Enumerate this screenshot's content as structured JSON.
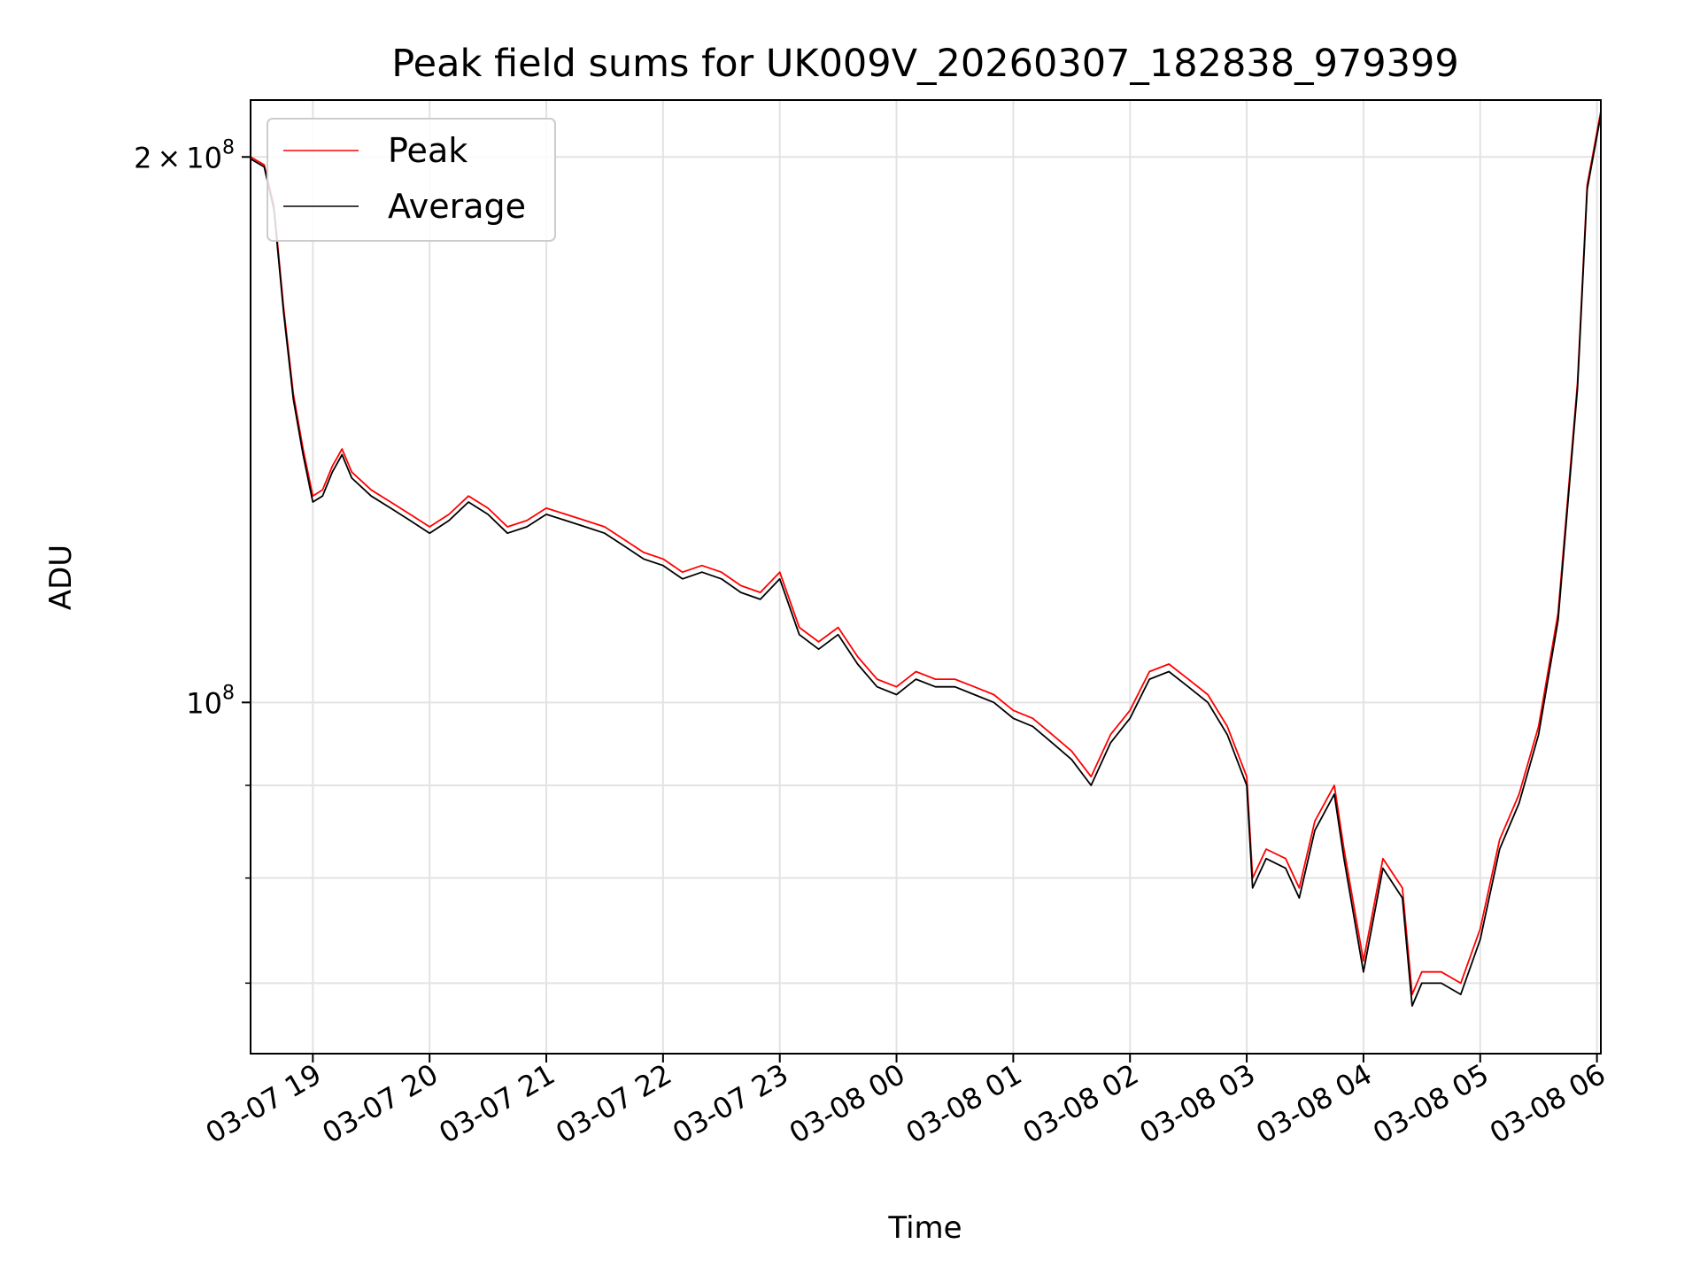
{
  "chart_data": {
    "type": "line",
    "title": "Peak field sums for UK009V_20260307_182838_979399",
    "xlabel": "Time",
    "ylabel": "ADU",
    "y_scale": "log",
    "grid": true,
    "legend_position": "top-left",
    "x_tick_labels": [
      "03-07 19",
      "03-07 20",
      "03-07 21",
      "03-07 22",
      "03-07 23",
      "03-08 00",
      "03-08 01",
      "03-08 02",
      "03-08 03",
      "03-08 04",
      "03-08 05",
      "03-08 06"
    ],
    "y_tick_labels": [
      {
        "value": 200000000,
        "mantissa": "2",
        "times": "×",
        "base": "10",
        "exponent": "8"
      },
      {
        "value": 100000000,
        "mantissa": "",
        "times": "",
        "base": "10",
        "exponent": "8"
      }
    ],
    "x_range": [
      "2026-03-07 18:28",
      "2026-03-08 06:02"
    ],
    "y_range": [
      64000000,
      215000000
    ],
    "x": [
      "2026-03-07 18:28",
      "2026-03-07 18:35",
      "2026-03-07 18:40",
      "2026-03-07 18:45",
      "2026-03-07 18:50",
      "2026-03-07 18:55",
      "2026-03-07 19:00",
      "2026-03-07 19:05",
      "2026-03-07 19:10",
      "2026-03-07 19:15",
      "2026-03-07 19:20",
      "2026-03-07 19:30",
      "2026-03-07 19:40",
      "2026-03-07 19:50",
      "2026-03-07 20:00",
      "2026-03-07 20:10",
      "2026-03-07 20:20",
      "2026-03-07 20:30",
      "2026-03-07 20:40",
      "2026-03-07 20:50",
      "2026-03-07 21:00",
      "2026-03-07 21:10",
      "2026-03-07 21:20",
      "2026-03-07 21:30",
      "2026-03-07 21:40",
      "2026-03-07 21:50",
      "2026-03-07 22:00",
      "2026-03-07 22:10",
      "2026-03-07 22:20",
      "2026-03-07 22:30",
      "2026-03-07 22:40",
      "2026-03-07 22:50",
      "2026-03-07 23:00",
      "2026-03-07 23:10",
      "2026-03-07 23:20",
      "2026-03-07 23:30",
      "2026-03-07 23:40",
      "2026-03-07 23:50",
      "2026-03-08 00:00",
      "2026-03-08 00:10",
      "2026-03-08 00:20",
      "2026-03-08 00:30",
      "2026-03-08 00:40",
      "2026-03-08 00:50",
      "2026-03-08 01:00",
      "2026-03-08 01:10",
      "2026-03-08 01:20",
      "2026-03-08 01:30",
      "2026-03-08 01:40",
      "2026-03-08 01:50",
      "2026-03-08 02:00",
      "2026-03-08 02:10",
      "2026-03-08 02:20",
      "2026-03-08 02:30",
      "2026-03-08 02:40",
      "2026-03-08 02:50",
      "2026-03-08 03:00",
      "2026-03-08 03:03",
      "2026-03-08 03:10",
      "2026-03-08 03:20",
      "2026-03-08 03:27",
      "2026-03-08 03:35",
      "2026-03-08 03:45",
      "2026-03-08 03:50",
      "2026-03-08 04:00",
      "2026-03-08 04:10",
      "2026-03-08 04:20",
      "2026-03-08 04:25",
      "2026-03-08 04:30",
      "2026-03-08 04:40",
      "2026-03-08 04:50",
      "2026-03-08 05:00",
      "2026-03-08 05:10",
      "2026-03-08 05:20",
      "2026-03-08 05:30",
      "2026-03-08 05:40",
      "2026-03-08 05:50",
      "2026-03-08 05:55",
      "2026-03-08 06:02"
    ],
    "series": [
      {
        "name": "Peak",
        "color": "#ff0000",
        "values": [
          200000000,
          198000000,
          188000000,
          165000000,
          148000000,
          138000000,
          130000000,
          131000000,
          135000000,
          138000000,
          134000000,
          131000000,
          129000000,
          127000000,
          125000000,
          127000000,
          130000000,
          128000000,
          125000000,
          126000000,
          128000000,
          127000000,
          126000000,
          125000000,
          123000000,
          121000000,
          120000000,
          118000000,
          119000000,
          118000000,
          116000000,
          115000000,
          118000000,
          110000000,
          108000000,
          110000000,
          106000000,
          103000000,
          102000000,
          104000000,
          103000000,
          103000000,
          102000000,
          101000000,
          99000000,
          98000000,
          96000000,
          94000000,
          91000000,
          96000000,
          99000000,
          104000000,
          105000000,
          103000000,
          101000000,
          97000000,
          91000000,
          80000000,
          83000000,
          82000000,
          79000000,
          86000000,
          90000000,
          83000000,
          72000000,
          82000000,
          79000000,
          69000000,
          71000000,
          71000000,
          70000000,
          75000000,
          84000000,
          89000000,
          97000000,
          112000000,
          150000000,
          193000000,
          212000000
        ]
      },
      {
        "name": "Average",
        "color": "#000000",
        "values": [
          199500000,
          197500000,
          187000000,
          164000000,
          147000000,
          137000000,
          129000000,
          130000000,
          134000000,
          137000000,
          133000000,
          130000000,
          128000000,
          126000000,
          124000000,
          126000000,
          129000000,
          127000000,
          124000000,
          125000000,
          127000000,
          126000000,
          125000000,
          124000000,
          122000000,
          120000000,
          119000000,
          117000000,
          118000000,
          117000000,
          115000000,
          114000000,
          117000000,
          109000000,
          107000000,
          109000000,
          105000000,
          102000000,
          101000000,
          103000000,
          102000000,
          102000000,
          101000000,
          100000000,
          98000000,
          97000000,
          95000000,
          93000000,
          90000000,
          95000000,
          98000000,
          103000000,
          104000000,
          102000000,
          100000000,
          96000000,
          90000000,
          79000000,
          82000000,
          81000000,
          78000000,
          85000000,
          89000000,
          82000000,
          71000000,
          81000000,
          78000000,
          68000000,
          70000000,
          70000000,
          69000000,
          74000000,
          83000000,
          88000000,
          96000000,
          111000000,
          149000000,
          192000000,
          211000000
        ]
      }
    ]
  }
}
